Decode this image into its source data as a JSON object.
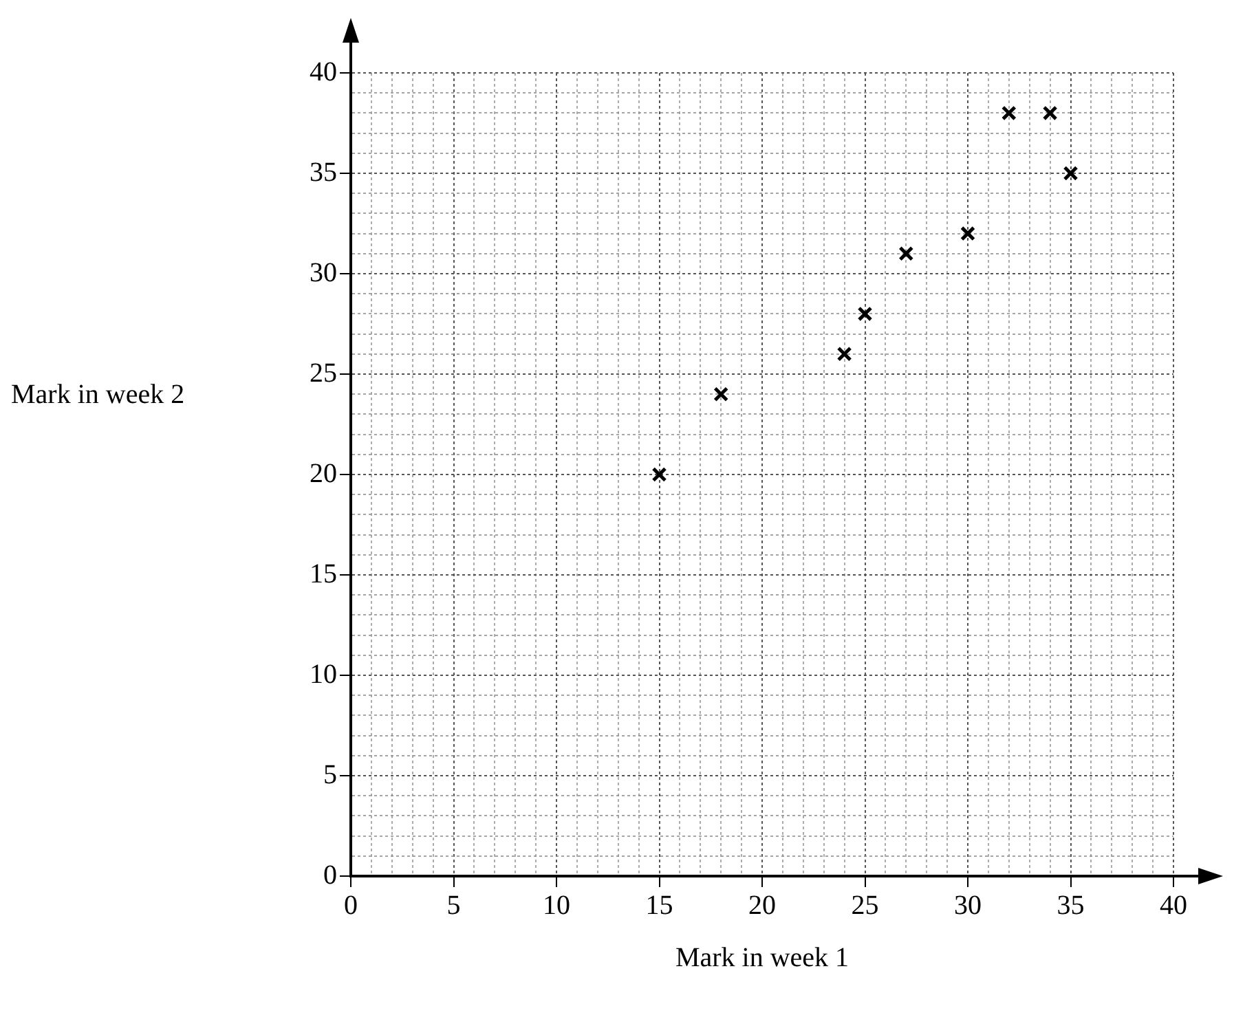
{
  "chart_data": {
    "type": "scatter",
    "xlabel": "Mark in week 1",
    "ylabel": "Mark in week 2",
    "marker": "cross",
    "grid": true,
    "legend": false,
    "x": [
      15,
      18,
      24,
      25,
      27,
      30,
      32,
      34,
      35
    ],
    "values": [
      20,
      24,
      26,
      28,
      31,
      32,
      38,
      38,
      35
    ],
    "color": "#000000",
    "xlim": [
      0,
      40
    ],
    "ylim": [
      0,
      40
    ],
    "xticks": [
      0,
      {
        "value": 1,
        "label": null
      },
      {
        "value": 2,
        "label": null
      },
      {
        "value": 3,
        "label": null
      },
      {
        "value": 4,
        "label": null
      },
      5,
      {
        "value": 6,
        "label": null
      },
      {
        "value": 7,
        "label": null
      },
      {
        "value": 8,
        "label": null
      },
      {
        "value": 9,
        "label": null
      },
      10,
      {
        "value": 11,
        "label": null
      },
      {
        "value": 12,
        "label": null
      },
      {
        "value": 13,
        "label": null
      },
      {
        "value": 14,
        "label": null
      },
      15,
      {
        "value": 16,
        "label": null
      },
      {
        "value": 17,
        "label": null
      },
      {
        "value": 18,
        "label": null
      },
      {
        "value": 19,
        "label": null
      },
      20,
      {
        "value": 21,
        "label": null
      },
      {
        "value": 22,
        "label": null
      },
      {
        "value": 23,
        "label": null
      },
      {
        "value": 24,
        "label": null
      },
      25,
      {
        "value": 26,
        "label": null
      },
      {
        "value": 27,
        "label": null
      },
      {
        "value": 28,
        "label": null
      },
      {
        "value": 29,
        "label": null
      },
      30,
      {
        "value": 31,
        "label": null
      },
      {
        "value": 32,
        "label": null
      },
      {
        "value": 33,
        "label": null
      },
      {
        "value": 34,
        "label": null
      },
      35,
      {
        "value": 36,
        "label": null
      },
      {
        "value": 37,
        "label": null
      },
      {
        "value": 38,
        "label": null
      },
      {
        "value": 39,
        "label": null
      },
      40
    ],
    "yticks": [
      0,
      {
        "value": 1,
        "label": null
      },
      {
        "value": 2,
        "label": null
      },
      {
        "value": 3,
        "label": null
      },
      {
        "value": 4,
        "label": null
      },
      5,
      {
        "value": 6,
        "label": null
      },
      {
        "value": 7,
        "label": null
      },
      {
        "value": 8,
        "label": null
      },
      {
        "value": 9,
        "label": null
      },
      10,
      {
        "value": 11,
        "label": null
      },
      {
        "value": 12,
        "label": null
      },
      {
        "value": 13,
        "label": null
      },
      {
        "value": 14,
        "label": null
      },
      15,
      {
        "value": 16,
        "label": null
      },
      {
        "value": 17,
        "label": null
      },
      {
        "value": 18,
        "label": null
      },
      {
        "value": 19,
        "label": null
      },
      20,
      {
        "value": 21,
        "label": null
      },
      {
        "value": 22,
        "label": null
      },
      {
        "value": 23,
        "label": null
      },
      {
        "value": 24,
        "label": null
      },
      25,
      {
        "value": 26,
        "label": null
      },
      {
        "value": 27,
        "label": null
      },
      {
        "value": 28,
        "label": null
      },
      {
        "value": 29,
        "label": null
      },
      30,
      {
        "value": 31,
        "label": null
      },
      {
        "value": 32,
        "label": null
      },
      {
        "value": 33,
        "label": null
      },
      {
        "value": 34,
        "label": null
      },
      35,
      {
        "value": 36,
        "label": null
      },
      {
        "value": 37,
        "label": null
      },
      {
        "value": 38,
        "label": null
      },
      {
        "value": 39,
        "label": null
      },
      40
    ]
  }
}
